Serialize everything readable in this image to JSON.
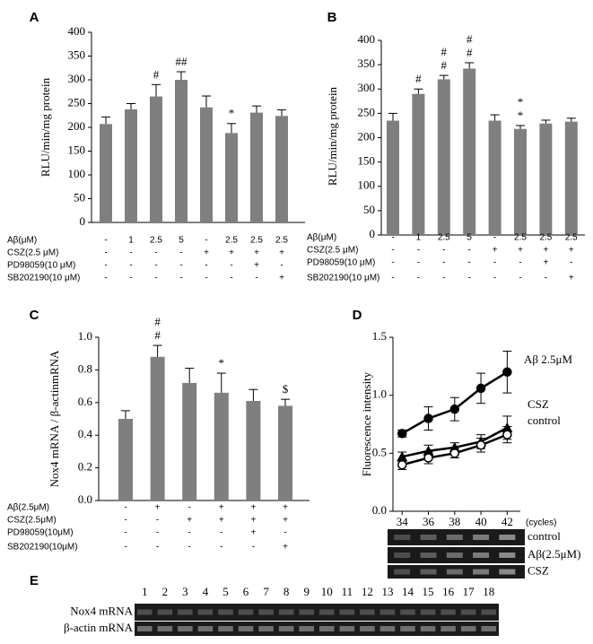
{
  "chart_data": [
    {
      "panel": "A",
      "type": "bar",
      "ylabel": "RLU/min/mg protein",
      "color": "#7f7f7f",
      "ylim": [
        0,
        400
      ],
      "yticks": [
        0,
        50,
        100,
        150,
        200,
        250,
        300,
        350,
        400
      ],
      "values": [
        207,
        238,
        265,
        300,
        242,
        188,
        231,
        224
      ],
      "errors": [
        15,
        12,
        25,
        17,
        24,
        20,
        14,
        13
      ],
      "annotations": [
        null,
        null,
        [
          "#"
        ],
        [
          "##"
        ],
        null,
        [
          "*"
        ],
        null,
        null
      ],
      "conditions": [
        {
          "label": "Aβ(μM)",
          "cells": [
            "-",
            "1",
            "2.5",
            "5",
            "-",
            "2.5",
            "2.5",
            "2.5"
          ]
        },
        {
          "label": "CSZ(2.5 μM)",
          "cells": [
            "-",
            "-",
            "-",
            "-",
            "+",
            "+",
            "+",
            "+"
          ]
        },
        {
          "label": "PD98059(10 μM)",
          "cells": [
            "-",
            "-",
            "-",
            "-",
            "-",
            "-",
            "+",
            "-"
          ]
        },
        {
          "label": "SB202190(10 μM)",
          "cells": [
            "-",
            "-",
            "-",
            "-",
            "-",
            "-",
            "-",
            "+"
          ]
        }
      ]
    },
    {
      "panel": "B",
      "type": "bar",
      "ylabel": "RLU/min/mg protein",
      "color": "#7f7f7f",
      "ylim": [
        0,
        400
      ],
      "yticks": [
        0,
        50,
        100,
        150,
        200,
        250,
        300,
        350,
        400
      ],
      "values": [
        235,
        290,
        320,
        342,
        235,
        218,
        229,
        233
      ],
      "errors": [
        15,
        10,
        8,
        12,
        12,
        7,
        7,
        7
      ],
      "annotations": [
        null,
        [
          "#"
        ],
        [
          "#",
          "#"
        ],
        [
          "#",
          "#"
        ],
        null,
        [
          "*",
          "*"
        ],
        null,
        null
      ],
      "conditions": [
        {
          "label": "Aβ(μM)",
          "cells": [
            "-",
            "1",
            "2.5",
            "5",
            "-",
            "2.5",
            "2.5",
            "2.5"
          ]
        },
        {
          "label": "CSZ(2.5 μM)",
          "cells": [
            "-",
            "-",
            "-",
            "-",
            "+",
            "+",
            "+",
            "+"
          ]
        },
        {
          "label": "PD98059(10 μM)",
          "cells": [
            "-",
            "-",
            "-",
            "-",
            "-",
            "-",
            "+",
            "-"
          ]
        },
        {
          "label": "SB202190(10 μM)",
          "cells": [
            "-",
            "-",
            "-",
            "-",
            "-",
            "-",
            "-",
            "+"
          ]
        }
      ]
    },
    {
      "panel": "C",
      "type": "bar",
      "ylabel": "Nox4 mRNA / β-actinmRNA",
      "color": "#7f7f7f",
      "ylim": [
        0,
        1.0
      ],
      "yticks": [
        {
          "value": 0,
          "label": "0.0"
        },
        0.2,
        0.4,
        0.6,
        0.8,
        {
          "value": 1,
          "label": "1.0"
        }
      ],
      "values": [
        0.5,
        0.88,
        0.72,
        0.66,
        0.61,
        0.58
      ],
      "errors": [
        0.05,
        0.07,
        0.09,
        0.12,
        0.07,
        0.04
      ],
      "annotations": [
        null,
        [
          "#",
          "#"
        ],
        null,
        [
          "*"
        ],
        null,
        [
          "$"
        ]
      ],
      "conditions": [
        {
          "label": "Aβ(2.5μM)",
          "cells": [
            "-",
            "+",
            "-",
            "+",
            "+",
            "+"
          ]
        },
        {
          "label": "CSZ(2.5μM)",
          "cells": [
            "-",
            "-",
            "+",
            "+",
            "+",
            "+"
          ]
        },
        {
          "label": "PD98059(10μM)",
          "cells": [
            "-",
            "-",
            "-",
            "-",
            "+",
            "-"
          ]
        },
        {
          "label": "SB202190(10μM)",
          "cells": [
            "-",
            "-",
            "-",
            "-",
            "-",
            "+"
          ]
        }
      ]
    },
    {
      "panel": "D",
      "type": "line",
      "ylabel": "Fluorescence intensity",
      "x": [
        34,
        36,
        38,
        40,
        42
      ],
      "xlim": [
        33.3,
        43
      ],
      "xticks": [
        34,
        36,
        38,
        40,
        42
      ],
      "xunit": "(cycles)",
      "ylim": [
        0,
        1.5
      ],
      "yticks": [
        {
          "value": 0,
          "label": "0.0"
        },
        0.5,
        {
          "value": 1,
          "label": "1.0"
        },
        1.5
      ],
      "series": [
        {
          "name": "Aβ 2.5μM",
          "color": "#000000",
          "marker": "circle",
          "values": [
            0.67,
            0.8,
            0.88,
            1.06,
            1.2
          ],
          "errors": [
            0.03,
            0.1,
            0.1,
            0.13,
            0.18
          ]
        },
        {
          "name": "CSZ",
          "color": "#000000",
          "marker": "triangle",
          "values": [
            0.47,
            0.52,
            0.55,
            0.6,
            0.72
          ],
          "errors": [
            0.04,
            0.05,
            0.04,
            0.06,
            0.1
          ]
        },
        {
          "name": "control",
          "color": "#000000",
          "marker": "open-circle",
          "values": [
            0.4,
            0.46,
            0.5,
            0.57,
            0.66
          ],
          "errors": [
            0.04,
            0.05,
            0.04,
            0.06,
            0.07
          ]
        }
      ],
      "gel_labels": [
        "control",
        "Aβ(2.5μM)",
        "CSZ"
      ]
    }
  ],
  "gel": {
    "panel": "E",
    "lanes": [
      "1",
      "2",
      "3",
      "4",
      "5",
      "6",
      "7",
      "8",
      "9",
      "10",
      "11",
      "12",
      "13",
      "14",
      "15",
      "16",
      "17",
      "18"
    ],
    "rows": [
      "Nox4 mRNA",
      "β-actin mRNA"
    ]
  }
}
